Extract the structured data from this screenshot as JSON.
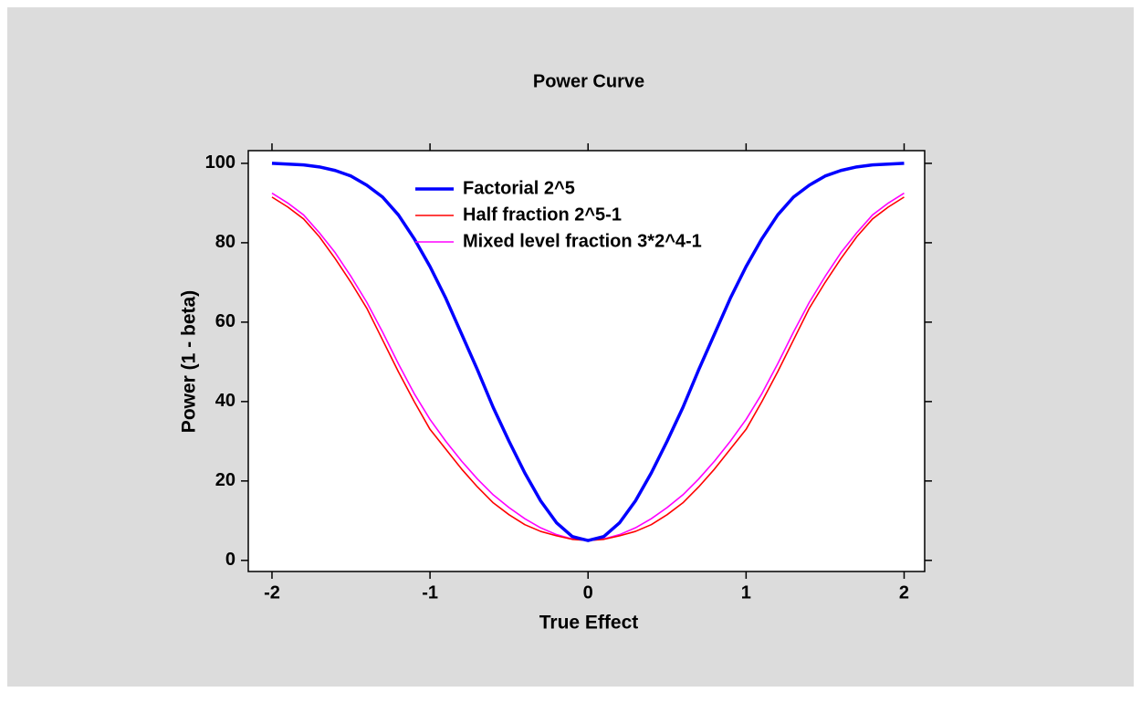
{
  "chart_data": {
    "type": "line",
    "title": "Power Curve",
    "x_label": "True Effect",
    "y_label": "Power (1 - beta)",
    "x": [
      -2,
      -1.9,
      -1.8,
      -1.7,
      -1.6,
      -1.5,
      -1.4,
      -1.3,
      -1.2,
      -1.1,
      -1,
      -0.9,
      -0.8,
      -0.7,
      -0.6,
      -0.5,
      -0.4,
      -0.3,
      -0.2,
      -0.1,
      0,
      0.1,
      0.2,
      0.3,
      0.4,
      0.5,
      0.6,
      0.7,
      0.8,
      0.9,
      1,
      1.1,
      1.2,
      1.3,
      1.4,
      1.5,
      1.6,
      1.7,
      1.8,
      1.9,
      2
    ],
    "series": [
      {
        "name": "Factorial 2^5",
        "color": "#0000ff",
        "values": [
          100,
          99.8,
          99.6,
          99.1,
          98.2,
          96.8,
          94.5,
          91.5,
          87,
          81,
          74,
          66,
          57,
          48,
          38.5,
          30,
          22,
          15,
          9.5,
          6,
          5,
          6,
          9.5,
          15,
          22,
          30,
          38.5,
          48,
          57,
          66,
          74,
          81,
          87,
          91.5,
          94.5,
          96.8,
          98.2,
          99.1,
          99.6,
          99.8,
          100
        ]
      },
      {
        "name": "Half fraction 2^5-1",
        "color": "#ff0000",
        "values": [
          91.5,
          89,
          86,
          81.5,
          76,
          70,
          63.5,
          55.5,
          47.5,
          40,
          33,
          28,
          23,
          18.5,
          14.5,
          11.5,
          9,
          7.3,
          6.2,
          5.3,
          5,
          5.3,
          6.2,
          7.3,
          9,
          11.5,
          14.5,
          18.5,
          23,
          28,
          33,
          40,
          47.5,
          55.5,
          63.5,
          70,
          76,
          81.5,
          86,
          89,
          91.5
        ]
      },
      {
        "name": "Mixed level fraction 3*2^4-1",
        "color": "#ff00ff",
        "values": [
          92.5,
          90,
          87,
          82.5,
          77.5,
          71.5,
          65,
          57.5,
          49.5,
          42,
          35.5,
          30,
          25,
          20.5,
          16.5,
          13.3,
          10.5,
          8.2,
          6.5,
          5.4,
          5,
          5.4,
          6.5,
          8.2,
          10.5,
          13.3,
          16.5,
          20.5,
          25,
          30,
          35.5,
          42,
          49.5,
          57.5,
          65,
          71.5,
          77.5,
          82.5,
          87,
          90,
          92.5
        ]
      }
    ],
    "xlim": [
      -2.15,
      2.13
    ],
    "ylim": [
      -2.8,
      103.2
    ],
    "xticks": [
      -2,
      -1,
      0,
      1,
      2
    ],
    "yticks": [
      0,
      20,
      40,
      60,
      80,
      100
    ],
    "legend": "top-left",
    "grid": false
  }
}
